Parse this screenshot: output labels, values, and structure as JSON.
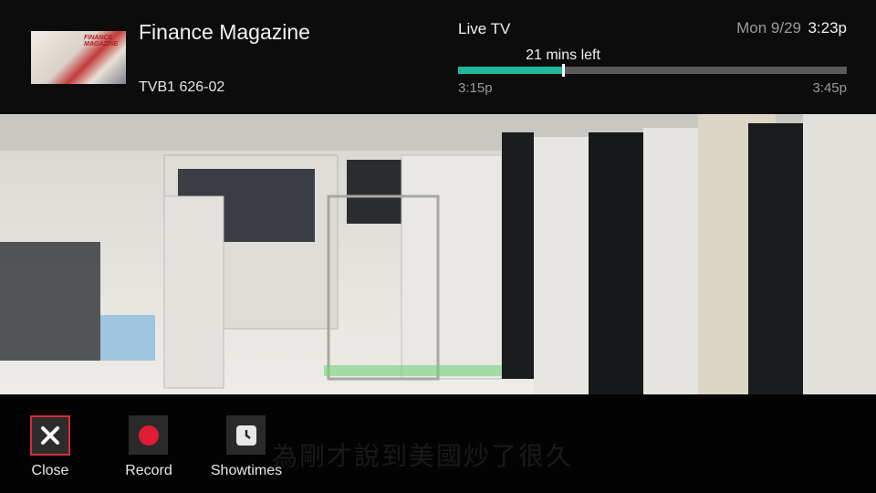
{
  "header": {
    "program_title": "Finance Magazine",
    "channel": "TVB1 626-02",
    "thumbnail_text": "FINANCE MAGAZINE",
    "source": "Live TV",
    "time_left": "21 mins left",
    "start_time": "3:15p",
    "end_time": "3:45p",
    "date": "Mon 9/29",
    "clock": "3:23p"
  },
  "video": {
    "subtitle": "為剛才說到美國炒了很久"
  },
  "buttons": [
    {
      "label": "Close"
    },
    {
      "label": "Record"
    },
    {
      "label": "Showtimes"
    }
  ]
}
